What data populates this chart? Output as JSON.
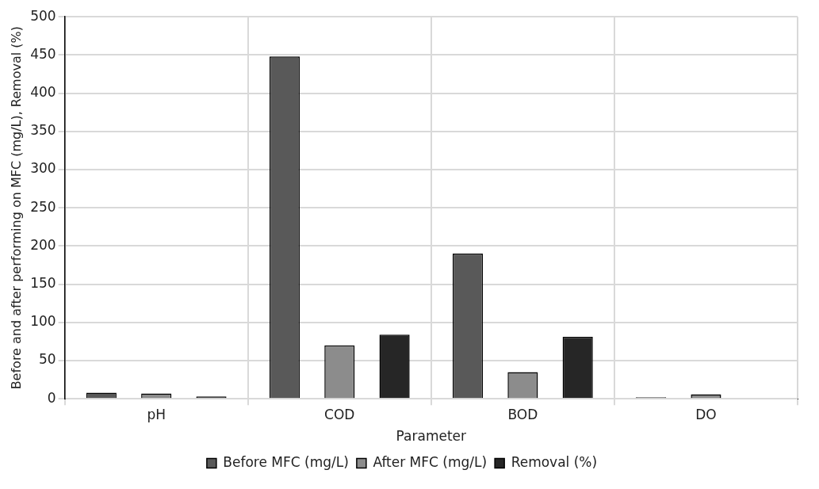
{
  "chart_data": {
    "type": "bar",
    "xlabel": "Parameter",
    "ylabel": "Before and after performing on MFC (mg/L), Removal (%)",
    "categories": [
      "pH",
      "COD",
      "BOD",
      "DO"
    ],
    "series": [
      {
        "name": "Before MFC (mg/L)",
        "color": "#595959",
        "values": [
          8,
          448,
          190,
          2
        ]
      },
      {
        "name": "After MFC (mg/L)",
        "color": "#8c8c8c",
        "values": [
          7,
          70,
          35,
          6
        ]
      },
      {
        "name": "Removal (%)",
        "color": "#262626",
        "values": [
          3,
          84,
          81,
          null
        ]
      }
    ],
    "ylim": [
      0,
      500
    ],
    "yticks": [
      0,
      50,
      100,
      150,
      200,
      250,
      300,
      350,
      400,
      450,
      500
    ],
    "grid": true,
    "legend": "bottom"
  }
}
